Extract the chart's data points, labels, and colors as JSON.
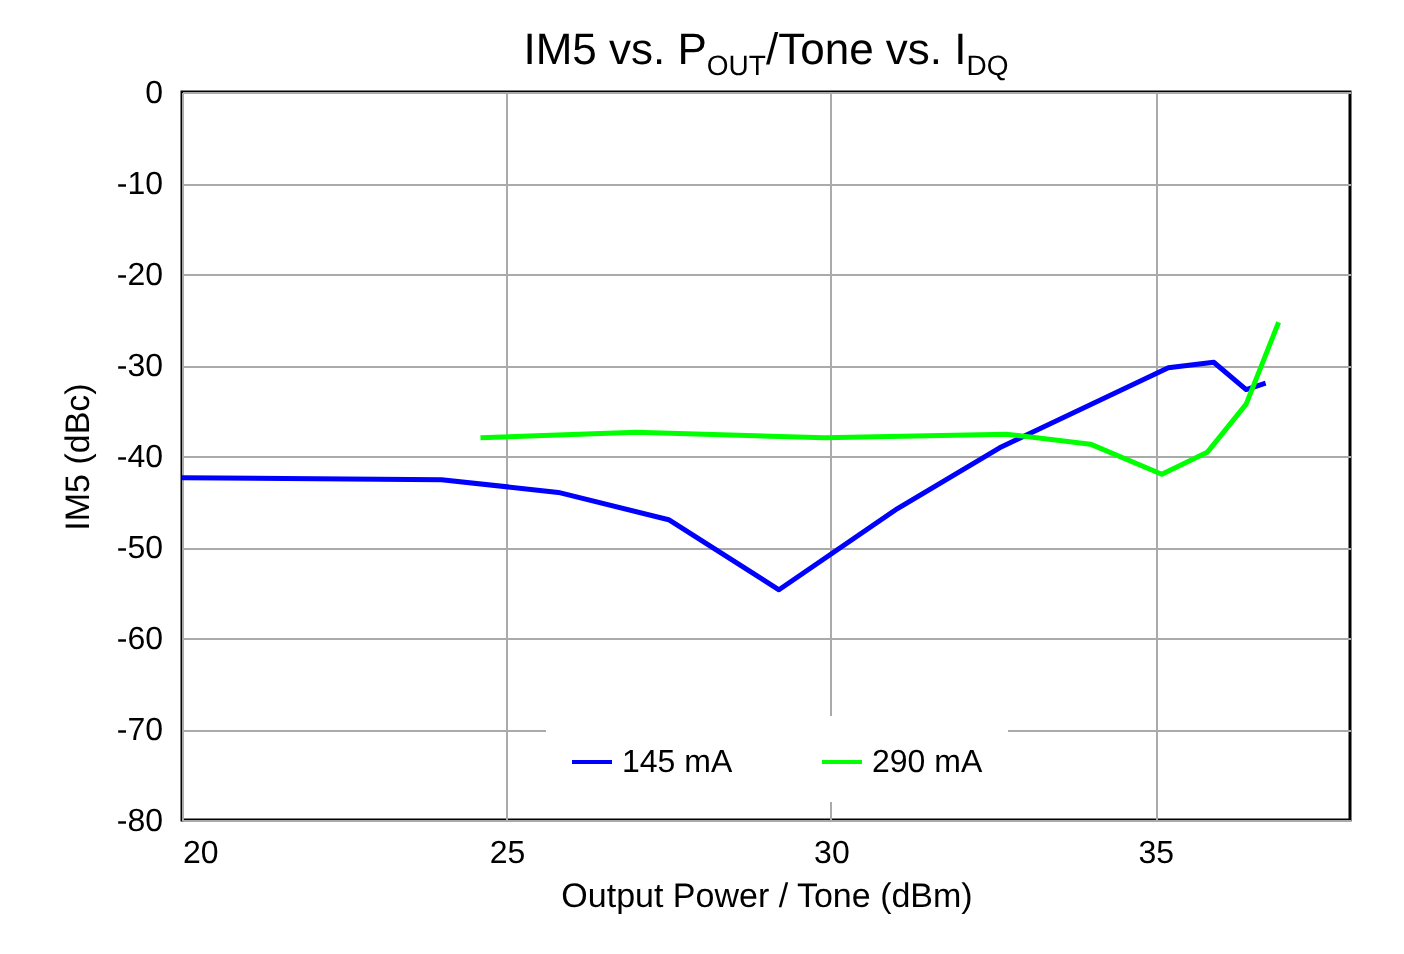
{
  "chart_data": {
    "type": "line",
    "title": "IM5 vs. P$_{OUT}$/Tone vs. I$_{DQ}$",
    "xlabel": "Output Power / Tone (dBm)",
    "ylabel": "IM5 (dBc)",
    "xlim": [
      20,
      38
    ],
    "xticks": [
      20,
      25,
      30,
      35
    ],
    "ylim": [
      -80,
      0
    ],
    "yticks": [
      0,
      -10,
      -20,
      -30,
      -40,
      -50,
      -60,
      -70,
      -80
    ],
    "grid": true,
    "legend": "bottom",
    "marker": "none",
    "line_style": "solid",
    "series": [
      {
        "name": "145 mA",
        "color": "#0000ff",
        "x": [
          20,
          24,
          25.8,
          27.5,
          29.2,
          31,
          32.6,
          35.2,
          35.9,
          36.4,
          36.7
        ],
        "values": [
          -42.4,
          -42.6,
          -44,
          -47,
          -54.7,
          -45.9,
          -39.1,
          -30.3,
          -29.7,
          -32.7,
          -32
        ]
      },
      {
        "name": "290 mA",
        "color": "#00ff00",
        "x": [
          24.6,
          27,
          29.9,
          32.7,
          34,
          35.1,
          35.8,
          36.4,
          36.9
        ],
        "values": [
          -38,
          -37.4,
          -38,
          -37.6,
          -38.7,
          -42,
          -39.6,
          -34.3,
          -25.3
        ]
      }
    ]
  }
}
